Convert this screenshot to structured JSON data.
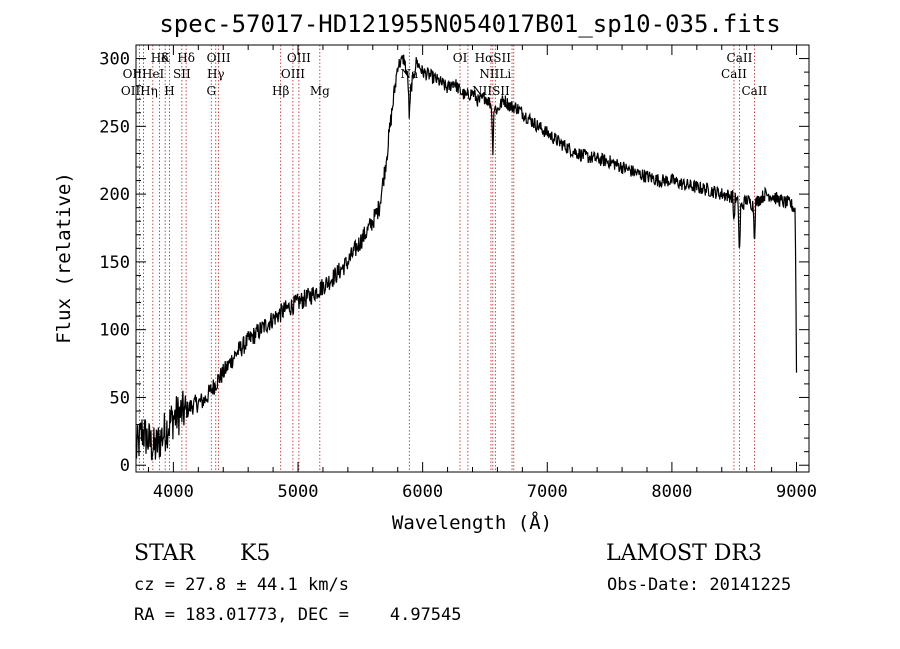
{
  "chart_data": {
    "type": "line",
    "title": "spec-57017-HD121955N054017B01_sp10-035.fits",
    "xlabel": "Wavelength (Å)",
    "ylabel": "Flux (relative)",
    "xlim": [
      3700,
      9100
    ],
    "ylim": [
      -5,
      310
    ],
    "xticks": [
      4000,
      5000,
      6000,
      7000,
      8000,
      9000
    ],
    "yticks": [
      0,
      50,
      100,
      150,
      200,
      250,
      300
    ],
    "series": [
      {
        "name": "spectrum",
        "x": [
          3700,
          3750,
          3800,
          3850,
          3900,
          3950,
          4000,
          4050,
          4100,
          4150,
          4200,
          4250,
          4300,
          4350,
          4400,
          4450,
          4500,
          4600,
          4700,
          4800,
          4900,
          5000,
          5100,
          5200,
          5300,
          5400,
          5500,
          5550,
          5600,
          5650,
          5700,
          5750,
          5800,
          5850,
          5900,
          5950,
          6000,
          6050,
          6100,
          6150,
          6200,
          6250,
          6300,
          6350,
          6400,
          6450,
          6500,
          6550,
          6600,
          6650,
          6700,
          6750,
          6800,
          6900,
          7000,
          7100,
          7200,
          7300,
          7400,
          7500,
          7600,
          7700,
          7800,
          7900,
          8000,
          8100,
          8200,
          8300,
          8400,
          8450,
          8500,
          8550,
          8600,
          8650,
          8700,
          8750,
          8800,
          8850,
          8900,
          8950,
          8990,
          9000
        ],
        "y": [
          10,
          25,
          18,
          12,
          20,
          28,
          35,
          38,
          40,
          44,
          46,
          48,
          55,
          62,
          68,
          75,
          82,
          92,
          100,
          108,
          115,
          120,
          125,
          132,
          140,
          150,
          165,
          172,
          180,
          190,
          220,
          258,
          295,
          300,
          275,
          298,
          290,
          288,
          285,
          282,
          278,
          283,
          276,
          272,
          275,
          268,
          272,
          266,
          262,
          270,
          265,
          264,
          260,
          252,
          245,
          238,
          232,
          228,
          226,
          224,
          220,
          216,
          213,
          210,
          210,
          207,
          205,
          203,
          200,
          199,
          198,
          190,
          196,
          192,
          196,
          200,
          199,
          196,
          194,
          193,
          188,
          70
        ]
      }
    ],
    "absorption_dips": [
      {
        "x": 5893,
        "y": 255
      },
      {
        "x": 6563,
        "y": 230
      },
      {
        "x": 8498,
        "y": 178
      },
      {
        "x": 8542,
        "y": 152
      },
      {
        "x": 8662,
        "y": 166
      }
    ],
    "spectral_lines": [
      {
        "label": "Hδ",
        "wavelength": 3889,
        "row": 1
      },
      {
        "label": "K",
        "wavelength": 3934,
        "row": 1
      },
      {
        "label": "Hδ",
        "wavelength": 4102,
        "row": 1
      },
      {
        "label": "OIII",
        "wavelength": 4363,
        "row": 1
      },
      {
        "label": "OIII",
        "wavelength": 5007,
        "row": 1
      },
      {
        "label": "OI",
        "wavelength": 6300,
        "row": 1
      },
      {
        "label": "HαSII",
        "wavelength": 6563,
        "row": 1
      },
      {
        "label": "CaII",
        "wavelength": 8542,
        "row": 1
      },
      {
        "label": "OIIHeI",
        "wavelength": 3760,
        "row": 2
      },
      {
        "label": "SII",
        "wavelength": 4068,
        "row": 2
      },
      {
        "label": "Hγ",
        "wavelength": 4340,
        "row": 2
      },
      {
        "label": "OIII",
        "wavelength": 4959,
        "row": 2
      },
      {
        "label": "Na",
        "wavelength": 5893,
        "row": 2
      },
      {
        "label": "NIILi",
        "wavelength": 6583,
        "row": 2
      },
      {
        "label": "CaII",
        "wavelength": 8498,
        "row": 2
      },
      {
        "label": "OIIHη",
        "wavelength": 3727,
        "row": 3
      },
      {
        "label": "H",
        "wavelength": 3969,
        "row": 3
      },
      {
        "label": "G",
        "wavelength": 4304,
        "row": 3
      },
      {
        "label": "Hβ",
        "wavelength": 4861,
        "row": 3
      },
      {
        "label": "Mg",
        "wavelength": 5175,
        "row": 3
      },
      {
        "label": "NIISII",
        "wavelength": 6548,
        "row": 3
      },
      {
        "label": "CaII",
        "wavelength": 8662,
        "row": 3
      }
    ],
    "line_markers": [
      3727,
      3760,
      3835,
      3889,
      3934,
      3969,
      4068,
      4102,
      4304,
      4340,
      4363,
      4861,
      4959,
      5007,
      5175,
      5893,
      6300,
      6363,
      6548,
      6563,
      6583,
      6717,
      6731,
      8498,
      8542,
      8662
    ],
    "colors": {
      "spectrum": "#000000",
      "markers": "#b22222"
    }
  },
  "info": {
    "object_class": "STAR",
    "subclass": "K5",
    "survey": "LAMOST DR3",
    "redshift": "cz = 27.8 ± 44.1 km/s",
    "obs_date": "Obs-Date: 20141225",
    "coords": "RA = 183.01773, DEC =    4.97545"
  }
}
